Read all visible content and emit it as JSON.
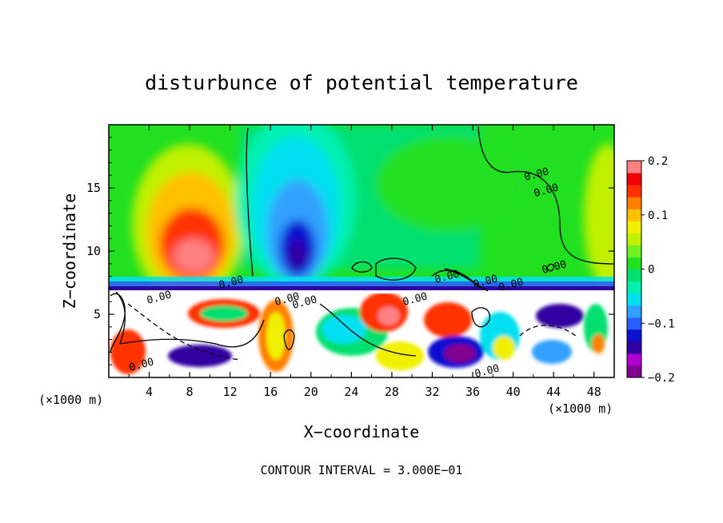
{
  "chart_data": {
    "type": "heatmap",
    "title": "disturbunce of potential temperature",
    "xlabel": "X−coordinate",
    "ylabel": "Z−coordinate",
    "x_unit_left": "(×1000 m)",
    "x_unit_right": "(×1000 m)",
    "xlim": [
      0,
      50
    ],
    "ylim": [
      0,
      20
    ],
    "x_ticks": [
      4,
      8,
      12,
      16,
      20,
      24,
      28,
      32,
      36,
      40,
      44,
      48
    ],
    "x_tick_labels": [
      "4",
      "8",
      "12",
      "16",
      "20",
      "24",
      "28",
      "32",
      "36",
      "40",
      "44",
      "48"
    ],
    "y_ticks": [
      5,
      10,
      15
    ],
    "y_tick_labels": [
      "5",
      "10",
      "15"
    ],
    "colorbar": {
      "range": [
        -0.2,
        0.2
      ],
      "tick_values": [
        0.2,
        0.1,
        0,
        -0.1,
        -0.2
      ],
      "tick_labels": [
        "0.2",
        "0.1",
        "0",
        "−0.1",
        "−0.2"
      ],
      "colors": [
        "#800090",
        "#b000d0",
        "#3000a0",
        "#1010d0",
        "#2860ff",
        "#30a0ff",
        "#00e0f0",
        "#00f0b0",
        "#00e070",
        "#20e020",
        "#70f020",
        "#c0f000",
        "#f0f000",
        "#ffc000",
        "#ff8000",
        "#ff3000",
        "#f00000",
        "#ff8080"
      ]
    },
    "contour_interval_text": "CONTOUR INTERVAL = 3.000E−01",
    "contour_labels": [
      "0.00",
      "0.00",
      "0.00",
      "0.00",
      "0.00",
      "0.00",
      "0.00",
      "0.00",
      "0.00",
      "0.00",
      "0.00",
      "0.00",
      "0.00"
    ],
    "grid": false
  }
}
